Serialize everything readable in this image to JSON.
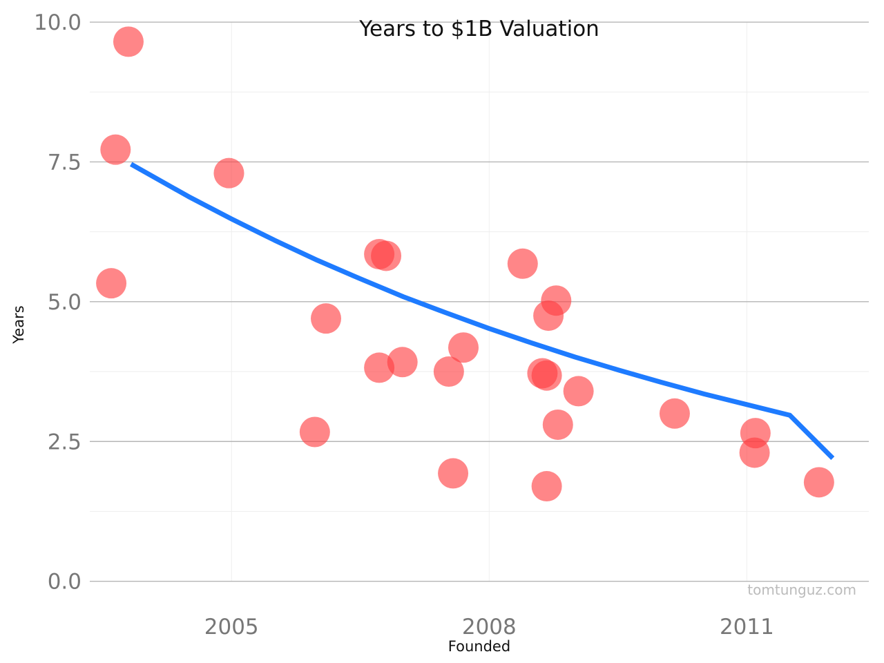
{
  "chart_data": {
    "type": "scatter",
    "title": "Years to $1B Valuation",
    "xlabel": "Founded",
    "ylabel": "Years",
    "watermark": "tomtunguz.com",
    "xlim": [
      2003.35,
      2012.42
    ],
    "ylim": [
      -0.35,
      10.05
    ],
    "x_ticks": [
      {
        "value": 2005,
        "label": "2005"
      },
      {
        "value": 2008,
        "label": "2008"
      },
      {
        "value": 2011,
        "label": "2011"
      }
    ],
    "y_ticks": [
      {
        "value": 0,
        "label": "0.0"
      },
      {
        "value": 2.5,
        "label": "2.5"
      },
      {
        "value": 5,
        "label": "5.0"
      },
      {
        "value": 7.5,
        "label": "7.5"
      },
      {
        "value": 10,
        "label": "10.0"
      }
    ],
    "y_minor_ticks": [
      1.25,
      3.75,
      6.25,
      8.75
    ],
    "grid": true,
    "colors": {
      "points": "#ff3b3f",
      "trend": "#1e7bff",
      "major_grid": "#b5b5b5",
      "minor_grid": "#eeeeee"
    },
    "points": [
      {
        "x": 2003.8,
        "y": 9.65
      },
      {
        "x": 2003.65,
        "y": 7.72
      },
      {
        "x": 2003.6,
        "y": 5.33
      },
      {
        "x": 2004.97,
        "y": 7.3
      },
      {
        "x": 2006.1,
        "y": 4.7
      },
      {
        "x": 2005.97,
        "y": 2.67
      },
      {
        "x": 2006.72,
        "y": 5.85
      },
      {
        "x": 2006.8,
        "y": 5.82
      },
      {
        "x": 2006.72,
        "y": 3.82
      },
      {
        "x": 2006.99,
        "y": 3.92
      },
      {
        "x": 2007.53,
        "y": 3.75
      },
      {
        "x": 2007.58,
        "y": 1.93
      },
      {
        "x": 2007.7,
        "y": 4.18
      },
      {
        "x": 2008.39,
        "y": 5.68
      },
      {
        "x": 2008.62,
        "y": 3.72
      },
      {
        "x": 2008.67,
        "y": 3.68
      },
      {
        "x": 2008.69,
        "y": 4.75
      },
      {
        "x": 2008.78,
        "y": 5.02
      },
      {
        "x": 2008.67,
        "y": 1.7
      },
      {
        "x": 2008.8,
        "y": 2.8
      },
      {
        "x": 2009.04,
        "y": 3.4
      },
      {
        "x": 2010.16,
        "y": 3.0
      },
      {
        "x": 2011.1,
        "y": 2.65
      },
      {
        "x": 2011.09,
        "y": 2.3
      },
      {
        "x": 2011.84,
        "y": 1.77
      }
    ],
    "trend_line": {
      "type": "exponential",
      "x": [
        2003.83,
        2004.5,
        2005.0,
        2005.5,
        2006.0,
        2006.5,
        2007.0,
        2007.5,
        2008.0,
        2008.5,
        2009.0,
        2009.5,
        2010.0,
        2010.5,
        2011.0,
        2011.5,
        2012.0
      ],
      "y": [
        7.46,
        6.88,
        6.48,
        6.1,
        5.74,
        5.41,
        5.09,
        4.8,
        4.52,
        4.26,
        4.01,
        3.78,
        3.56,
        3.35,
        3.16,
        2.97,
        2.2
      ]
    }
  }
}
